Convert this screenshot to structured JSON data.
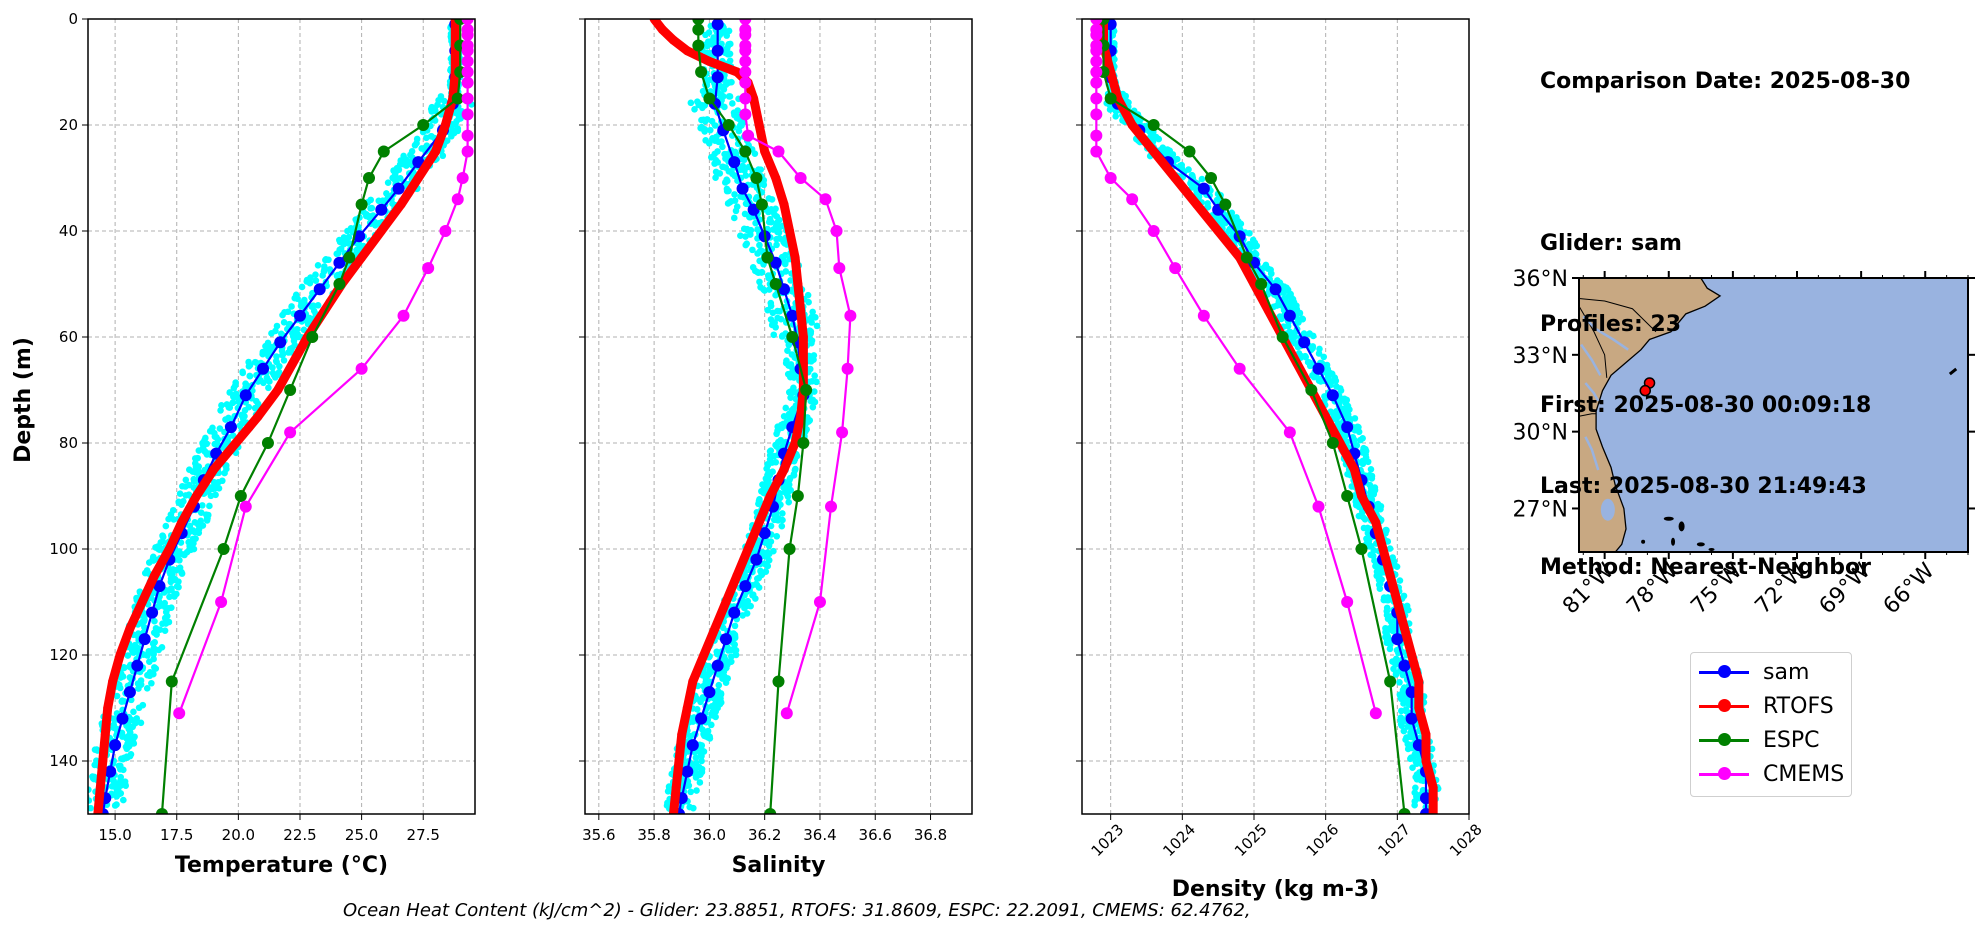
{
  "info": {
    "comparison_date": "Comparison Date: 2025-08-30",
    "glider": "Glider: sam",
    "profiles": "Profiles: 23",
    "first": "First: 2025-08-30 00:09:18",
    "last": "Last: 2025-08-30 21:49:43",
    "method": "Method: Nearest-Neighbor"
  },
  "footer": "Ocean Heat Content (kJ/cm^2) - Glider: 23.8851,  RTOFS: 31.8609,  ESPC: 22.2091,  CMEMS: 62.4762,",
  "colors": {
    "sam": "#0000ff",
    "RTOFS": "#ff0000",
    "ESPC": "#008000",
    "CMEMS": "#ff00ff",
    "glider_obs": "#00ffff",
    "land": "#c8a882",
    "ocean": "#99b3e0",
    "river": "#99b3e0"
  },
  "legend": [
    "sam",
    "RTOFS",
    "ESPC",
    "CMEMS"
  ],
  "chart_data": [
    {
      "type": "line",
      "xlabel": "Temperature (°C)",
      "ylabel": "Depth (m)",
      "xlim": [
        13.9,
        29.6
      ],
      "ylim": [
        150,
        0
      ],
      "xticks": [
        "15.0",
        "17.5",
        "20.0",
        "22.5",
        "25.0",
        "27.5"
      ],
      "yticks": [
        "0",
        "20",
        "40",
        "60",
        "80",
        "100",
        "120",
        "140"
      ],
      "grid": true,
      "series": [
        {
          "name": "sam",
          "depth": [
            1,
            6,
            11,
            16,
            21,
            27,
            32,
            36,
            41,
            46,
            51,
            56,
            61,
            66,
            71,
            77,
            82,
            87,
            92,
            97,
            102,
            107,
            112,
            117,
            122,
            127,
            132,
            137,
            142,
            147,
            150
          ],
          "values": [
            28.8,
            28.8,
            28.8,
            28.7,
            28.3,
            27.3,
            26.5,
            25.8,
            24.9,
            24.1,
            23.3,
            22.5,
            21.7,
            21.0,
            20.3,
            19.7,
            19.1,
            18.6,
            18.2,
            17.7,
            17.2,
            16.8,
            16.5,
            16.2,
            15.9,
            15.6,
            15.3,
            15.0,
            14.8,
            14.6,
            14.5
          ]
        },
        {
          "name": "RTOFS",
          "depth": [
            0,
            5,
            10,
            15,
            20,
            25,
            30,
            35,
            40,
            45,
            50,
            55,
            60,
            65,
            70,
            75,
            80,
            85,
            90,
            95,
            100,
            105,
            110,
            115,
            120,
            125,
            130,
            135,
            140,
            145,
            150
          ],
          "values": [
            28.8,
            28.8,
            28.8,
            28.7,
            28.4,
            28.0,
            27.3,
            26.6,
            25.8,
            25.0,
            24.2,
            23.5,
            22.8,
            22.2,
            21.6,
            20.8,
            19.9,
            19.0,
            18.3,
            17.7,
            17.2,
            16.6,
            16.1,
            15.6,
            15.2,
            14.9,
            14.7,
            14.6,
            14.5,
            14.4,
            14.3
          ]
        },
        {
          "name": "ESPC",
          "depth": [
            0,
            5,
            10,
            15,
            20,
            25,
            30,
            35,
            45,
            50,
            60,
            70,
            80,
            90,
            100,
            125,
            150
          ],
          "values": [
            29.0,
            29.0,
            29.0,
            28.9,
            27.5,
            25.9,
            25.3,
            25.0,
            24.5,
            24.1,
            23.0,
            22.1,
            21.2,
            20.1,
            19.4,
            17.3,
            16.9
          ]
        },
        {
          "name": "CMEMS",
          "depth": [
            0,
            2,
            3,
            5,
            6,
            8,
            10,
            12,
            15,
            18,
            22,
            25,
            30,
            34,
            40,
            47,
            56,
            66,
            78,
            92,
            110,
            131
          ],
          "values": [
            29.3,
            29.3,
            29.3,
            29.3,
            29.3,
            29.3,
            29.3,
            29.3,
            29.3,
            29.3,
            29.3,
            29.3,
            29.1,
            28.9,
            28.4,
            27.7,
            26.7,
            25.0,
            22.1,
            20.3,
            19.3,
            17.6
          ]
        }
      ]
    },
    {
      "type": "line",
      "xlabel": "Salinity",
      "ylabel": "Depth (m)",
      "xlim": [
        35.55,
        36.95
      ],
      "ylim": [
        150,
        0
      ],
      "xticks": [
        "35.6",
        "35.8",
        "36.0",
        "36.2",
        "36.4",
        "36.6",
        "36.8"
      ],
      "grid": true,
      "series": [
        {
          "name": "sam",
          "depth": [
            1,
            6,
            11,
            16,
            21,
            27,
            32,
            36,
            41,
            46,
            51,
            56,
            61,
            66,
            71,
            77,
            82,
            87,
            92,
            97,
            102,
            107,
            112,
            117,
            122,
            127,
            132,
            137,
            142,
            147,
            150
          ],
          "values": [
            36.03,
            36.03,
            36.03,
            36.02,
            36.05,
            36.09,
            36.12,
            36.16,
            36.2,
            36.24,
            36.27,
            36.3,
            36.32,
            36.33,
            36.34,
            36.3,
            36.27,
            36.25,
            36.23,
            36.2,
            36.17,
            36.13,
            36.09,
            36.06,
            36.03,
            36.0,
            35.97,
            35.94,
            35.92,
            35.9,
            35.89
          ]
        },
        {
          "name": "RTOFS",
          "depth": [
            0,
            2,
            4,
            6,
            8,
            10,
            12,
            15,
            20,
            25,
            30,
            35,
            40,
            45,
            50,
            55,
            60,
            65,
            70,
            75,
            80,
            85,
            90,
            95,
            100,
            105,
            110,
            115,
            120,
            125,
            130,
            135,
            140,
            145,
            150
          ],
          "values": [
            35.8,
            35.83,
            35.87,
            35.92,
            36.0,
            36.1,
            36.14,
            36.16,
            36.18,
            36.2,
            36.24,
            36.27,
            36.29,
            36.31,
            36.32,
            36.33,
            36.34,
            36.34,
            36.34,
            36.33,
            36.31,
            36.27,
            36.22,
            36.18,
            36.14,
            36.1,
            36.06,
            36.02,
            35.98,
            35.94,
            35.92,
            35.9,
            35.89,
            35.88,
            35.87
          ]
        },
        {
          "name": "ESPC",
          "depth": [
            0,
            2,
            5,
            10,
            15,
            20,
            25,
            30,
            35,
            45,
            50,
            60,
            70,
            80,
            90,
            100,
            125,
            150
          ],
          "values": [
            35.96,
            35.96,
            35.96,
            35.97,
            36.0,
            36.07,
            36.13,
            36.17,
            36.19,
            36.21,
            36.24,
            36.3,
            36.35,
            36.34,
            36.32,
            36.29,
            36.25,
            36.22
          ]
        },
        {
          "name": "CMEMS",
          "depth": [
            0,
            2,
            3,
            5,
            6,
            8,
            10,
            12,
            15,
            18,
            22,
            25,
            30,
            34,
            40,
            47,
            56,
            66,
            78,
            92,
            110,
            131
          ],
          "values": [
            36.13,
            36.13,
            36.13,
            36.13,
            36.13,
            36.13,
            36.13,
            36.13,
            36.13,
            36.13,
            36.14,
            36.25,
            36.33,
            36.42,
            36.46,
            36.47,
            36.51,
            36.5,
            36.48,
            36.44,
            36.4,
            36.28
          ]
        }
      ]
    },
    {
      "type": "line",
      "xlabel": "Density (kg m-3)",
      "ylabel": "Depth (m)",
      "xlim": [
        1022.6,
        1028.0
      ],
      "ylim": [
        150,
        0
      ],
      "xticks": [
        "1023",
        "1024",
        "1025",
        "1026",
        "1027",
        "1028"
      ],
      "grid": true,
      "series": [
        {
          "name": "sam",
          "depth": [
            1,
            6,
            11,
            16,
            21,
            27,
            32,
            36,
            41,
            46,
            51,
            56,
            61,
            66,
            71,
            77,
            82,
            87,
            92,
            97,
            102,
            107,
            112,
            117,
            122,
            127,
            132,
            137,
            142,
            147,
            150
          ],
          "values": [
            1023.0,
            1023.0,
            1023.0,
            1023.1,
            1023.4,
            1023.8,
            1024.3,
            1024.5,
            1024.8,
            1025.0,
            1025.3,
            1025.5,
            1025.7,
            1025.9,
            1026.1,
            1026.3,
            1026.4,
            1026.5,
            1026.6,
            1026.7,
            1026.8,
            1026.9,
            1027.0,
            1027.0,
            1027.1,
            1027.2,
            1027.2,
            1027.3,
            1027.4,
            1027.4,
            1027.4
          ]
        },
        {
          "name": "RTOFS",
          "depth": [
            0,
            5,
            10,
            15,
            20,
            25,
            30,
            35,
            40,
            45,
            50,
            55,
            60,
            65,
            70,
            75,
            80,
            85,
            90,
            95,
            100,
            105,
            110,
            115,
            120,
            125,
            130,
            135,
            140,
            145,
            150
          ],
          "values": [
            1022.9,
            1022.9,
            1023.0,
            1023.1,
            1023.3,
            1023.6,
            1023.9,
            1024.2,
            1024.5,
            1024.8,
            1025.0,
            1025.2,
            1025.4,
            1025.6,
            1025.8,
            1026.0,
            1026.2,
            1026.4,
            1026.5,
            1026.7,
            1026.8,
            1026.9,
            1027.0,
            1027.1,
            1027.2,
            1027.3,
            1027.3,
            1027.4,
            1027.4,
            1027.5,
            1027.5
          ]
        },
        {
          "name": "ESPC",
          "depth": [
            0,
            5,
            10,
            15,
            20,
            25,
            30,
            35,
            45,
            50,
            60,
            70,
            80,
            90,
            100,
            125,
            150
          ],
          "values": [
            1022.9,
            1022.9,
            1022.9,
            1023.0,
            1023.6,
            1024.1,
            1024.4,
            1024.6,
            1024.9,
            1025.1,
            1025.4,
            1025.8,
            1026.1,
            1026.3,
            1026.5,
            1026.9,
            1027.1
          ]
        },
        {
          "name": "CMEMS",
          "depth": [
            0,
            2,
            3,
            5,
            6,
            8,
            10,
            12,
            15,
            18,
            22,
            25,
            30,
            34,
            40,
            47,
            56,
            66,
            78,
            92,
            110,
            131
          ],
          "values": [
            1022.8,
            1022.8,
            1022.8,
            1022.8,
            1022.8,
            1022.8,
            1022.8,
            1022.8,
            1022.8,
            1022.8,
            1022.8,
            1022.8,
            1023.0,
            1023.3,
            1023.6,
            1023.9,
            1024.3,
            1024.8,
            1025.5,
            1025.9,
            1026.3,
            1026.7
          ]
        }
      ]
    },
    {
      "type": "map",
      "lat_ticks": [
        "36°N",
        "33°N",
        "30°N",
        "27°N"
      ],
      "lon_ticks": [
        "81°W",
        "78°W",
        "75°W",
        "72°W",
        "69°W",
        "66°W"
      ],
      "lat_range": [
        25.3,
        36.0
      ],
      "lon_range": [
        -82.2,
        -64.0
      ],
      "glider_positions": [
        {
          "lon": -78.9,
          "lat": 31.9
        },
        {
          "lon": -79.1,
          "lat": 31.6
        }
      ]
    }
  ]
}
